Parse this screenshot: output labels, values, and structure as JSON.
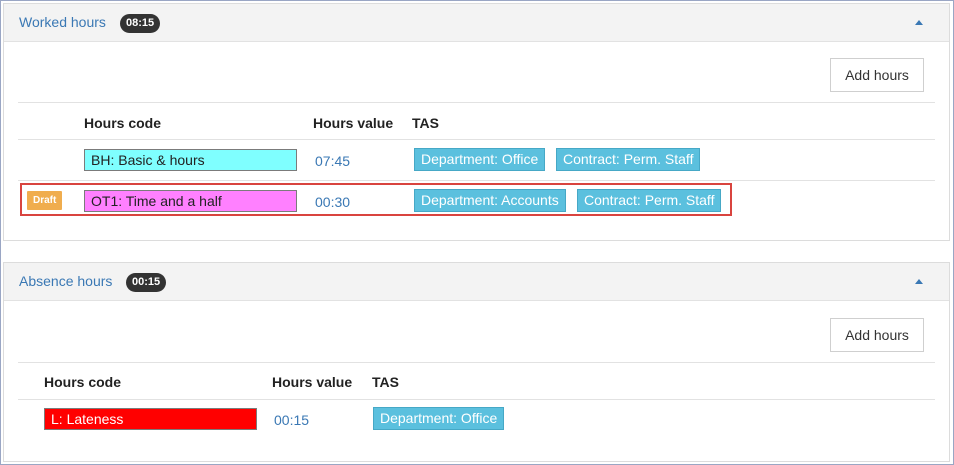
{
  "colors": {
    "accent": "#3a78b4",
    "badge_dark": "#333333",
    "tas_tag": "#5bc0de",
    "draft": "#f0ad4e",
    "selection_border": "#d9443f",
    "code_bh": "#7fffff",
    "code_ot1": "#ff80ff",
    "code_l": "#ff0000"
  },
  "worked": {
    "title": "Worked hours",
    "total": "08:15",
    "collapse_icon": "chevron-up-icon",
    "add_label": "Add hours",
    "columns": {
      "code": "Hours code",
      "value": "Hours value",
      "tas": "TAS"
    },
    "rows": [
      {
        "code": "BH: Basic & hours",
        "value": "07:45",
        "tas": [
          "Department: Office",
          "Contract: Perm. Staff"
        ]
      },
      {
        "status": "Draft",
        "code": "OT1: Time and a half",
        "value": "00:30",
        "tas": [
          "Department: Accounts",
          "Contract: Perm. Staff"
        ]
      }
    ]
  },
  "absence": {
    "title": "Absence hours",
    "total": "00:15",
    "collapse_icon": "chevron-up-icon",
    "add_label": "Add hours",
    "columns": {
      "code": "Hours code",
      "value": "Hours value",
      "tas": "TAS"
    },
    "rows": [
      {
        "code": "L: Lateness",
        "value": "00:15",
        "tas": [
          "Department: Office"
        ]
      }
    ]
  }
}
